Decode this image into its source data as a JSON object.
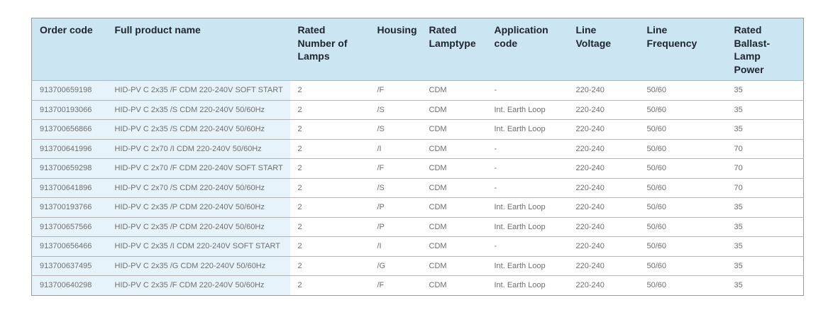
{
  "colors": {
    "header_bg": "#cbe6f2",
    "row_tint_bg": "#e7f3fb",
    "row_bg": "#ffffff",
    "outer_border": "#9a9a9a",
    "divider": "#b4b4b4",
    "header_text": "#1c2430",
    "body_text": "#6f6f6f"
  },
  "table": {
    "columns": [
      {
        "key": "order_code",
        "label": "Order code"
      },
      {
        "key": "full_product_name",
        "label": "Full product name"
      },
      {
        "key": "rated_number_of_lamps",
        "label": "Rated\nNumber of\nLamps"
      },
      {
        "key": "housing",
        "label": "Housing"
      },
      {
        "key": "rated_lamptype",
        "label": "Rated\nLamptype"
      },
      {
        "key": "application_code",
        "label": "Application\ncode"
      },
      {
        "key": "line_voltage",
        "label": "Line\nVoltage"
      },
      {
        "key": "line_frequency",
        "label": "Line\nFrequency"
      },
      {
        "key": "rated_ballast_lamp_power",
        "label": "Rated\nBallast-\nLamp\nPower"
      }
    ],
    "rows": [
      [
        "913700659198",
        "HID-PV C 2x35 /F CDM 220-240V SOFT START",
        "2",
        "/F",
        "CDM",
        "-",
        "220-240",
        "50/60",
        "35"
      ],
      [
        "913700193066",
        "HID-PV C 2x35 /S CDM 220-240V 50/60Hz",
        "2",
        "/S",
        "CDM",
        "Int. Earth Loop",
        "220-240",
        "50/60",
        "35"
      ],
      [
        "913700656866",
        "HID-PV C 2x35 /S CDM 220-240V 50/60Hz",
        "2",
        "/S",
        "CDM",
        "Int. Earth Loop",
        "220-240",
        "50/60",
        "35"
      ],
      [
        "913700641996",
        "HID-PV C 2x70 /I CDM 220-240V 50/60Hz",
        "2",
        "/I",
        "CDM",
        "-",
        "220-240",
        "50/60",
        "70"
      ],
      [
        "913700659298",
        "HID-PV C 2x70 /F CDM 220-240V SOFT START",
        "2",
        "/F",
        "CDM",
        "-",
        "220-240",
        "50/60",
        "70"
      ],
      [
        "913700641896",
        "HID-PV C 2x70 /S CDM 220-240V 50/60Hz",
        "2",
        "/S",
        "CDM",
        "-",
        "220-240",
        "50/60",
        "70"
      ],
      [
        "913700193766",
        "HID-PV C 2x35 /P CDM 220-240V 50/60Hz",
        "2",
        "/P",
        "CDM",
        "Int. Earth Loop",
        "220-240",
        "50/60",
        "35"
      ],
      [
        "913700657566",
        "HID-PV C 2x35 /P CDM 220-240V 50/60Hz",
        "2",
        "/P",
        "CDM",
        "Int. Earth Loop",
        "220-240",
        "50/60",
        "35"
      ],
      [
        "913700656466",
        "HID-PV C 2x35 /I CDM 220-240V SOFT START",
        "2",
        "/I",
        "CDM",
        "-",
        "220-240",
        "50/60",
        "35"
      ],
      [
        "913700637495",
        "HID-PV C 2x35 /G CDM 220-240V 50/60Hz",
        "2",
        "/G",
        "CDM",
        "Int. Earth Loop",
        "220-240",
        "50/60",
        "35"
      ],
      [
        "913700640298",
        "HID-PV C 2x35 /F CDM 220-240V 50/60Hz",
        "2",
        "/F",
        "CDM",
        "Int. Earth Loop",
        "220-240",
        "50/60",
        "35"
      ]
    ]
  }
}
